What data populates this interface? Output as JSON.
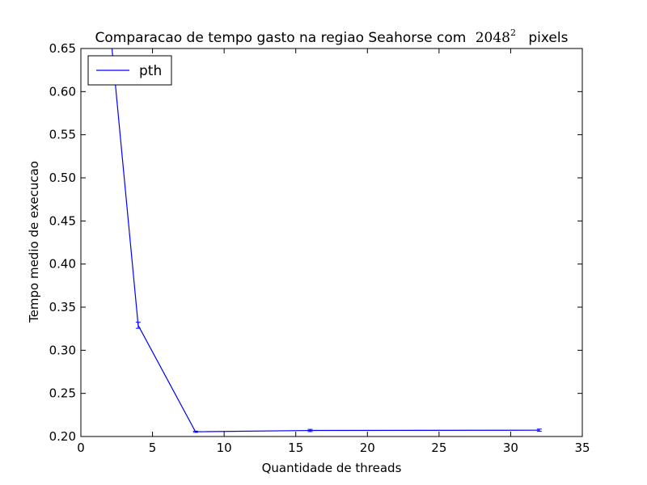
{
  "chart_data": {
    "type": "line",
    "title": {
      "prefix": "Comparacao de tempo gasto na regiao Seahorse com",
      "math_base": "2048",
      "math_exp": "2",
      "suffix": "pixels"
    },
    "xlabel": "Quantidade de threads",
    "ylabel": "Tempo medio de execucao",
    "xlim": [
      0,
      35
    ],
    "ylim": [
      0.2,
      0.65
    ],
    "xticks": [
      0,
      5,
      10,
      15,
      20,
      25,
      30,
      35
    ],
    "yticks": [
      0.2,
      0.25,
      0.3,
      0.35,
      0.4,
      0.45,
      0.5,
      0.55,
      0.6,
      0.65
    ],
    "xtick_labels": [
      "0",
      "5",
      "10",
      "15",
      "20",
      "25",
      "30",
      "35"
    ],
    "ytick_labels": [
      "0.20",
      "0.25",
      "0.30",
      "0.35",
      "0.40",
      "0.45",
      "0.50",
      "0.55",
      "0.60",
      "0.65"
    ],
    "grid": false,
    "legend": {
      "placement": "top-left"
    },
    "series": [
      {
        "name": "pth",
        "color": "#0000ff",
        "x": [
          2,
          4,
          8,
          16,
          32
        ],
        "y": [
          0.68,
          0.329,
          0.2055,
          0.207,
          0.2073
        ],
        "err": [
          0.0,
          0.0035,
          0.0007,
          0.0013,
          0.0013
        ]
      }
    ]
  }
}
